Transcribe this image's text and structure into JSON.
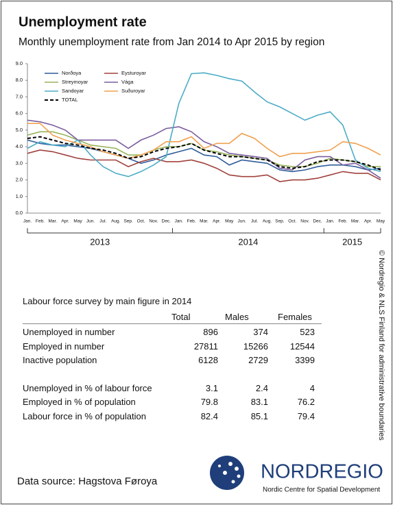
{
  "chart_data": {
    "type": "line",
    "title": "Unemployment rate",
    "subtitle": "Monthly unemployment rate from Jan 2014 to Apr 2015 by region",
    "categories": [
      "Jan.",
      "Feb.",
      "Mar.",
      "Apr.",
      "May",
      "Jun.",
      "Jul.",
      "Aug.",
      "Sep.",
      "Oct.",
      "Nov.",
      "Dec.",
      "Jan.",
      "Feb.",
      "Mar.",
      "Apr.",
      "May",
      "Jun.",
      "Jul.",
      "Aug.",
      "Sep.",
      "Oct.",
      "Nov.",
      "Dec.",
      "Jan.",
      "Feb.",
      "Mar.",
      "Apr.",
      "May"
    ],
    "year_labels": [
      "2013",
      "2014",
      "2015"
    ],
    "ylim": [
      0,
      9
    ],
    "yticks": [
      {
        "value": 0,
        "label": "0.0"
      },
      {
        "value": 1,
        "label": "1.0"
      },
      {
        "value": 2,
        "label": "2.0"
      },
      {
        "value": 3,
        "label": "3.0"
      },
      {
        "value": 4,
        "label": "4.0"
      },
      {
        "value": 5,
        "label": "5.0"
      },
      {
        "value": 6,
        "label": "6.0"
      },
      {
        "value": 7,
        "label": "7.0"
      },
      {
        "value": 8,
        "label": "8.0"
      },
      {
        "value": 9,
        "label": "9.0"
      }
    ],
    "legend": "top-left",
    "series": [
      {
        "name": "Norðoya",
        "color": "#2e5c9a",
        "style": "solid",
        "values": [
          4.4,
          4.2,
          4.1,
          4.1,
          4.0,
          3.9,
          3.7,
          3.5,
          3.3,
          3.0,
          3.2,
          3.5,
          3.7,
          3.9,
          3.5,
          3.4,
          2.9,
          3.2,
          3.1,
          3.0,
          2.6,
          2.5,
          2.6,
          2.8,
          2.9,
          2.9,
          2.8,
          2.6,
          2.7
        ]
      },
      {
        "name": "Eysturoyar",
        "color": "#a0403c",
        "style": "solid",
        "values": [
          3.6,
          3.8,
          3.7,
          3.5,
          3.3,
          3.2,
          3.2,
          3.2,
          2.8,
          3.1,
          3.3,
          3.1,
          3.1,
          3.2,
          3.0,
          2.7,
          2.3,
          2.2,
          2.2,
          2.3,
          1.9,
          2.0,
          2.0,
          2.1,
          2.3,
          2.5,
          2.4,
          2.4,
          2.0
        ]
      },
      {
        "name": "Streymoyar",
        "color": "#98b45a",
        "style": "solid",
        "values": [
          4.7,
          4.9,
          4.9,
          4.7,
          4.4,
          4.1,
          4.0,
          3.9,
          3.5,
          3.5,
          3.8,
          4.0,
          4.0,
          4.2,
          3.8,
          3.7,
          3.5,
          3.4,
          3.3,
          3.2,
          2.9,
          2.8,
          2.8,
          3.0,
          3.3,
          3.2,
          3.1,
          2.8,
          2.8
        ]
      },
      {
        "name": "Vága",
        "color": "#7b5c9e",
        "style": "solid",
        "values": [
          5.6,
          5.5,
          5.3,
          5.0,
          4.4,
          4.4,
          4.4,
          4.4,
          3.9,
          4.4,
          4.7,
          5.1,
          5.2,
          4.9,
          4.3,
          4.0,
          3.6,
          3.5,
          3.4,
          3.3,
          2.7,
          2.6,
          3.2,
          3.4,
          3.4,
          2.9,
          3.0,
          2.6,
          2.1
        ]
      },
      {
        "name": "Sandoyar",
        "color": "#4bacc6",
        "style": "solid",
        "values": [
          3.9,
          4.3,
          4.1,
          4.0,
          4.4,
          3.5,
          2.8,
          2.4,
          2.2,
          2.5,
          2.9,
          3.4,
          6.6,
          8.4,
          8.45,
          8.3,
          8.1,
          7.95,
          7.3,
          6.7,
          6.4,
          6.0,
          5.6,
          5.9,
          6.1,
          5.3,
          3.2,
          2.7,
          2.5
        ]
      },
      {
        "name": "Suðuroyar",
        "color": "#f0a050",
        "style": "solid",
        "values": [
          5.4,
          5.4,
          4.7,
          4.4,
          4.2,
          4.0,
          3.7,
          3.5,
          3.3,
          3.5,
          3.8,
          4.3,
          4.3,
          4.6,
          3.9,
          4.2,
          4.2,
          4.8,
          4.5,
          3.9,
          3.4,
          3.6,
          3.6,
          3.7,
          3.8,
          4.3,
          4.2,
          3.9,
          3.5
        ]
      },
      {
        "name": "TOTAL",
        "color": "#000000",
        "style": "dashed",
        "values": [
          4.5,
          4.6,
          4.4,
          4.2,
          4.1,
          3.9,
          3.8,
          3.6,
          3.3,
          3.4,
          3.7,
          3.9,
          4.0,
          4.2,
          3.8,
          3.6,
          3.4,
          3.4,
          3.3,
          3.2,
          2.8,
          2.7,
          2.8,
          3.1,
          3.2,
          3.2,
          3.1,
          2.9,
          2.6
        ]
      }
    ]
  },
  "table": {
    "title": "Labour force survey by main figure in 2014",
    "columns": [
      "Total",
      "Males",
      "Females"
    ],
    "groups": [
      {
        "rows": [
          {
            "label": "Unemployed in number",
            "values": [
              896,
              374,
              523
            ]
          },
          {
            "label": "Employed in number",
            "values": [
              27811,
              15266,
              12544
            ]
          },
          {
            "label": "Inactive population",
            "values": [
              6128,
              2729,
              3399
            ]
          }
        ]
      },
      {
        "rows": [
          {
            "label": "Unemployed in % of labour force",
            "values": [
              3.1,
              2.4,
              4
            ]
          },
          {
            "label": "Employed in % of population",
            "values": [
              79.8,
              83.1,
              76.2
            ]
          },
          {
            "label": "Labour force in % of population",
            "values": [
              82.4,
              85.1,
              79.4
            ]
          }
        ]
      }
    ]
  },
  "source": "Data source: Hagstova Føroya",
  "copyright": "© Nordregio & NLS Finland for administrative boundaries",
  "logo": {
    "name": "NORDREGIO",
    "tagline": "Nordic Centre for Spatial Development"
  }
}
